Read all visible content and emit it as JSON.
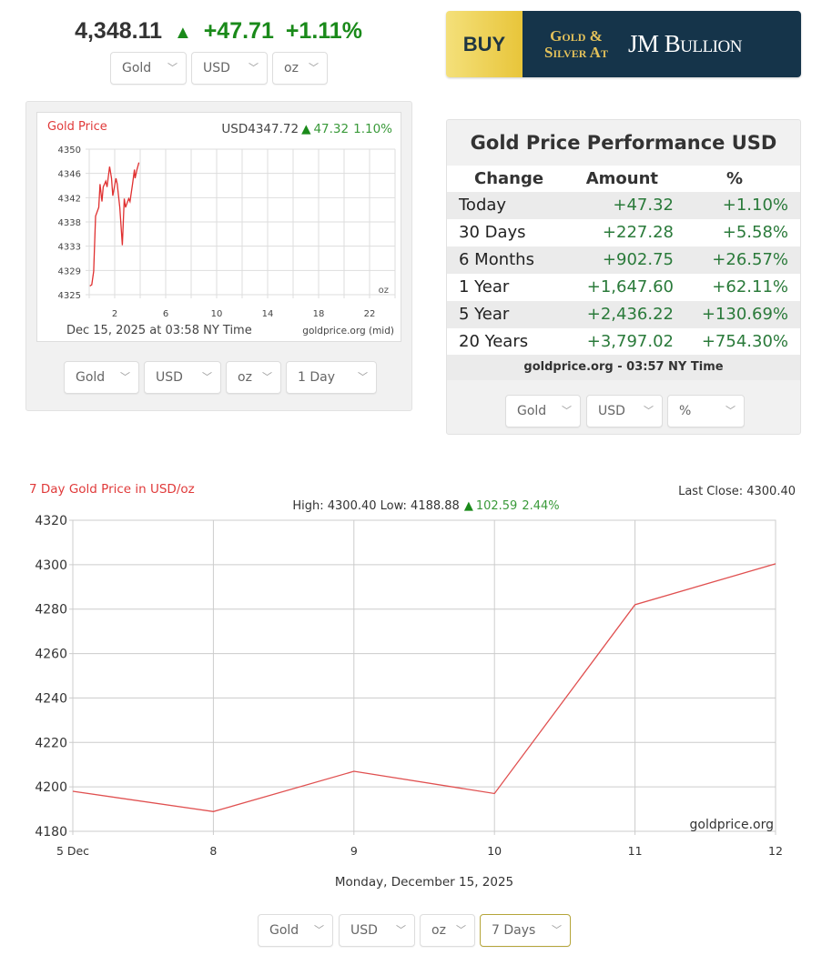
{
  "header": {
    "price": "4,348.11",
    "arrow_icon": "triangle-up-icon",
    "change": "+47.71",
    "change_pct": "+1.11%",
    "up_color": "#1a8a1a",
    "selects": [
      "Gold",
      "USD",
      "oz"
    ]
  },
  "ad": {
    "buy": "BUY",
    "line1": "Gold &",
    "line2": "Silver At",
    "brand": "JM Bullion",
    "bg": "#15344a",
    "gold": "#e8c53a"
  },
  "small_chart": {
    "selects": [
      "Gold",
      "USD",
      "oz",
      "1 Day"
    ],
    "chart_data": {
      "type": "line",
      "title": "Gold Price",
      "quote": "USD4347.72",
      "change": "47.32",
      "change_pct": "1.10%",
      "unit": "oz",
      "date_label": "Dec 15, 2025 at 03:58 NY Time",
      "source": "goldprice.org (mid)",
      "xlim": [
        0,
        24
      ],
      "x_ticks": [
        "2",
        "6",
        "10",
        "14",
        "18",
        "22"
      ],
      "ylim": [
        4325,
        4350
      ],
      "y_ticks": [
        "4350",
        "4346",
        "4342",
        "4338",
        "4333",
        "4329",
        "4325"
      ],
      "grid": true,
      "line_color": "#e03030",
      "x": [
        0.05,
        0.2,
        0.35,
        0.5,
        0.75,
        0.85,
        1.0,
        1.1,
        1.3,
        1.4,
        1.6,
        1.75,
        1.85,
        2.1,
        2.2,
        2.4,
        2.6,
        2.75,
        2.85,
        3.1,
        3.2,
        3.4,
        3.55,
        3.6,
        3.75,
        3.9
      ],
      "y": [
        4326.5,
        4326.7,
        4329,
        4338.5,
        4340,
        4344,
        4341,
        4343.5,
        4344.5,
        4343.5,
        4347,
        4345,
        4342,
        4345,
        4344,
        4340,
        4333.5,
        4341.5,
        4340,
        4341.5,
        4341,
        4344,
        4346.5,
        4345,
        4346.5,
        4347.7
      ]
    }
  },
  "performance": {
    "title": "Gold Price Performance USD",
    "columns": [
      "Change",
      "Amount",
      "%"
    ],
    "rows": [
      {
        "label": "Today",
        "amount": "+47.32",
        "pct": "+1.10%"
      },
      {
        "label": "30 Days",
        "amount": "+227.28",
        "pct": "+5.58%"
      },
      {
        "label": "6 Months",
        "amount": "+902.75",
        "pct": "+26.57%"
      },
      {
        "label": "1 Year",
        "amount": "+1,647.60",
        "pct": "+62.11%"
      },
      {
        "label": "5 Year",
        "amount": "+2,436.22",
        "pct": "+130.69%"
      },
      {
        "label": "20 Years",
        "amount": "+3,797.02",
        "pct": "+754.30%"
      }
    ],
    "footer": "goldprice.org - 03:57 NY Time",
    "selects": [
      "Gold",
      "USD",
      "%"
    ]
  },
  "big_chart": {
    "selects": [
      "Gold",
      "USD",
      "oz",
      "7 Days"
    ],
    "chart_data": {
      "type": "line",
      "title": "7 Day Gold Price in USD/oz",
      "stats": "High: 4300.40 Low: 4188.88",
      "change": "102.59",
      "change_pct": "2.44%",
      "last_close": "Last Close: 4300.40",
      "xlabel": "Monday, December 15, 2025",
      "watermark": "goldprice.org",
      "categories": [
        "5 Dec",
        "8",
        "9",
        "10",
        "11",
        "12"
      ],
      "values": [
        4198,
        4188.88,
        4207,
        4197,
        4282,
        4300.4
      ],
      "ylim": [
        4180,
        4320
      ],
      "y_ticks": [
        4320,
        4300,
        4280,
        4260,
        4240,
        4220,
        4200,
        4180
      ],
      "grid": true,
      "line_color": "#e05050"
    }
  }
}
